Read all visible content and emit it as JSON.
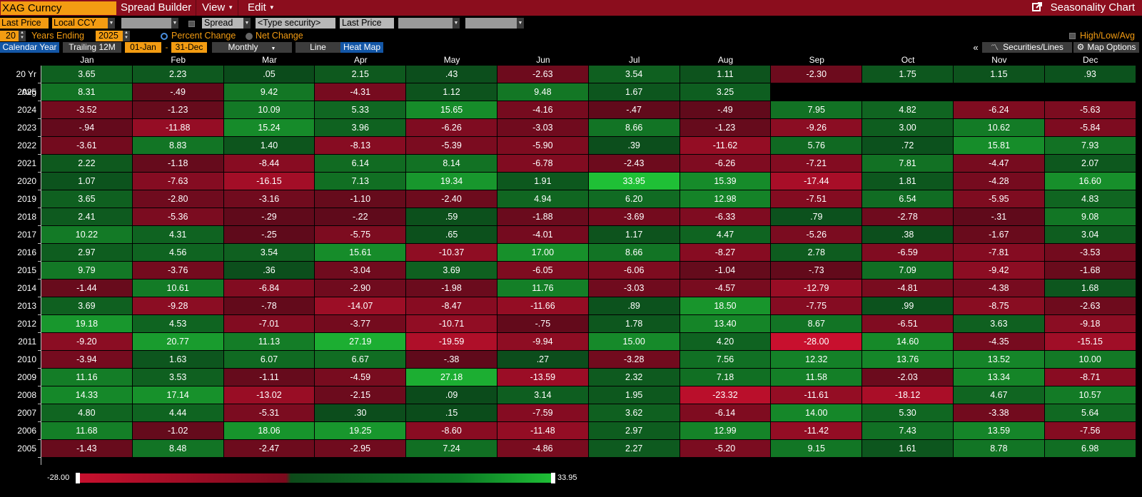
{
  "title_bar": {
    "ticker": "XAG Curncy",
    "menus": [
      "Spread Builder",
      "View",
      "Edit"
    ],
    "app_title": "Seasonality Chart"
  },
  "toolbar1": {
    "field": "Last Price",
    "currency": "Local CCY",
    "spread_label": "Spread",
    "security_placeholder": "<Type security>",
    "field2": "Last Price"
  },
  "toolbar2": {
    "years": "20",
    "years_label": "Years Ending",
    "year_end": "2025",
    "percent_change": "Percent Change",
    "net_change": "Net Change",
    "mode": "percent",
    "high_low_avg": "High/Low/Avg"
  },
  "tabs": {
    "calendar_year": "Calendar Year",
    "trailing": "Trailing 12M",
    "start": "01-Jan",
    "dash": "-",
    "end": "31-Dec",
    "period": "Monthly",
    "line": "Line",
    "heat_map": "Heat Map",
    "collapse": "«",
    "securities_lines": "Securities/Lines",
    "map_options": "Map Options"
  },
  "colors": {
    "neg_strong": "#c8102e",
    "neg_weak": "#5c0a1a",
    "pos_weak": "#0b4a1b",
    "pos_strong": "#1fc036"
  },
  "grid": {
    "months": [
      "Jan",
      "Feb",
      "Mar",
      "Apr",
      "May",
      "Jun",
      "Jul",
      "Aug",
      "Sep",
      "Oct",
      "Nov",
      "Dec"
    ],
    "rows": [
      {
        "label": "20 Yr Avg",
        "values": [
          "3.65",
          "2.23",
          ".05",
          "2.15",
          ".43",
          "-2.63",
          "3.54",
          "1.11",
          "-2.30",
          "1.75",
          "1.15",
          ".93"
        ]
      },
      {
        "label": "2025",
        "values": [
          "8.31",
          "-.49",
          "9.42",
          "-4.31",
          "1.12",
          "9.48",
          "1.67",
          "3.25",
          "",
          "",
          "",
          ""
        ]
      },
      {
        "label": "2024",
        "values": [
          "-3.52",
          "-1.23",
          "10.09",
          "5.33",
          "15.65",
          "-4.16",
          "-.47",
          "-.49",
          "7.95",
          "4.82",
          "-6.24",
          "-5.63"
        ]
      },
      {
        "label": "2023",
        "values": [
          "-.94",
          "-11.88",
          "15.24",
          "3.96",
          "-6.26",
          "-3.03",
          "8.66",
          "-1.23",
          "-9.26",
          "3.00",
          "10.62",
          "-5.84"
        ]
      },
      {
        "label": "2022",
        "values": [
          "-3.61",
          "8.83",
          "1.40",
          "-8.13",
          "-5.39",
          "-5.90",
          ".39",
          "-11.62",
          "5.76",
          ".72",
          "15.81",
          "7.93"
        ]
      },
      {
        "label": "2021",
        "values": [
          "2.22",
          "-1.18",
          "-8.44",
          "6.14",
          "8.14",
          "-6.78",
          "-2.43",
          "-6.26",
          "-7.21",
          "7.81",
          "-4.47",
          "2.07"
        ]
      },
      {
        "label": "2020",
        "values": [
          "1.07",
          "-7.63",
          "-16.15",
          "7.13",
          "19.34",
          "1.91",
          "33.95",
          "15.39",
          "-17.44",
          "1.81",
          "-4.28",
          "16.60"
        ]
      },
      {
        "label": "2019",
        "values": [
          "3.65",
          "-2.80",
          "-3.16",
          "-1.10",
          "-2.40",
          "4.94",
          "6.20",
          "12.98",
          "-7.51",
          "6.54",
          "-5.95",
          "4.83"
        ]
      },
      {
        "label": "2018",
        "values": [
          "2.41",
          "-5.36",
          "-.29",
          "-.22",
          ".59",
          "-1.88",
          "-3.69",
          "-6.33",
          ".79",
          "-2.78",
          "-.31",
          "9.08"
        ]
      },
      {
        "label": "2017",
        "values": [
          "10.22",
          "4.31",
          "-.25",
          "-5.75",
          ".65",
          "-4.01",
          "1.17",
          "4.47",
          "-5.26",
          ".38",
          "-1.67",
          "3.04"
        ]
      },
      {
        "label": "2016",
        "values": [
          "2.97",
          "4.56",
          "3.54",
          "15.61",
          "-10.37",
          "17.00",
          "8.66",
          "-8.27",
          "2.78",
          "-6.59",
          "-7.81",
          "-3.53"
        ]
      },
      {
        "label": "2015",
        "values": [
          "9.79",
          "-3.76",
          ".36",
          "-3.04",
          "3.69",
          "-6.05",
          "-6.06",
          "-1.04",
          "-.73",
          "7.09",
          "-9.42",
          "-1.68"
        ]
      },
      {
        "label": "2014",
        "values": [
          "-1.44",
          "10.61",
          "-6.84",
          "-2.90",
          "-1.98",
          "11.76",
          "-3.03",
          "-4.57",
          "-12.79",
          "-4.81",
          "-4.38",
          "1.68"
        ]
      },
      {
        "label": "2013",
        "values": [
          "3.69",
          "-9.28",
          "-.78",
          "-14.07",
          "-8.47",
          "-11.66",
          ".89",
          "18.50",
          "-7.75",
          ".99",
          "-8.75",
          "-2.63"
        ]
      },
      {
        "label": "2012",
        "values": [
          "19.18",
          "4.53",
          "-7.01",
          "-3.77",
          "-10.71",
          "-.75",
          "1.78",
          "13.40",
          "8.67",
          "-6.51",
          "3.63",
          "-9.18"
        ]
      },
      {
        "label": "2011",
        "values": [
          "-9.20",
          "20.77",
          "11.13",
          "27.19",
          "-19.59",
          "-9.94",
          "15.00",
          "4.20",
          "-28.00",
          "14.60",
          "-4.35",
          "-15.15"
        ]
      },
      {
        "label": "2010",
        "values": [
          "-3.94",
          "1.63",
          "6.07",
          "6.67",
          "-.38",
          ".27",
          "-3.28",
          "7.56",
          "12.32",
          "13.76",
          "13.52",
          "10.00"
        ]
      },
      {
        "label": "2009",
        "values": [
          "11.16",
          "3.53",
          "-1.11",
          "-4.59",
          "27.18",
          "-13.59",
          "2.32",
          "7.18",
          "11.58",
          "-2.03",
          "13.34",
          "-8.71"
        ]
      },
      {
        "label": "2008",
        "values": [
          "14.33",
          "17.14",
          "-13.02",
          "-2.15",
          ".09",
          "3.14",
          "1.95",
          "-23.32",
          "-11.61",
          "-18.12",
          "4.67",
          "10.57"
        ]
      },
      {
        "label": "2007",
        "values": [
          "4.80",
          "4.44",
          "-5.31",
          ".30",
          ".15",
          "-7.59",
          "3.62",
          "-6.14",
          "14.00",
          "5.30",
          "-3.38",
          "5.64"
        ]
      },
      {
        "label": "2006",
        "values": [
          "11.68",
          "-1.02",
          "18.06",
          "19.25",
          "-8.60",
          "-11.48",
          "2.97",
          "12.99",
          "-11.42",
          "7.43",
          "13.59",
          "-7.56"
        ]
      },
      {
        "label": "2005",
        "values": [
          "-1.43",
          "8.48",
          "-2.47",
          "-2.95",
          "7.24",
          "-4.86",
          "2.27",
          "-5.20",
          "9.15",
          "1.61",
          "8.78",
          "6.98"
        ]
      }
    ]
  },
  "scale": {
    "min_label": "-28.00",
    "max_label": "33.95",
    "min": -28.0,
    "max": 33.95
  }
}
